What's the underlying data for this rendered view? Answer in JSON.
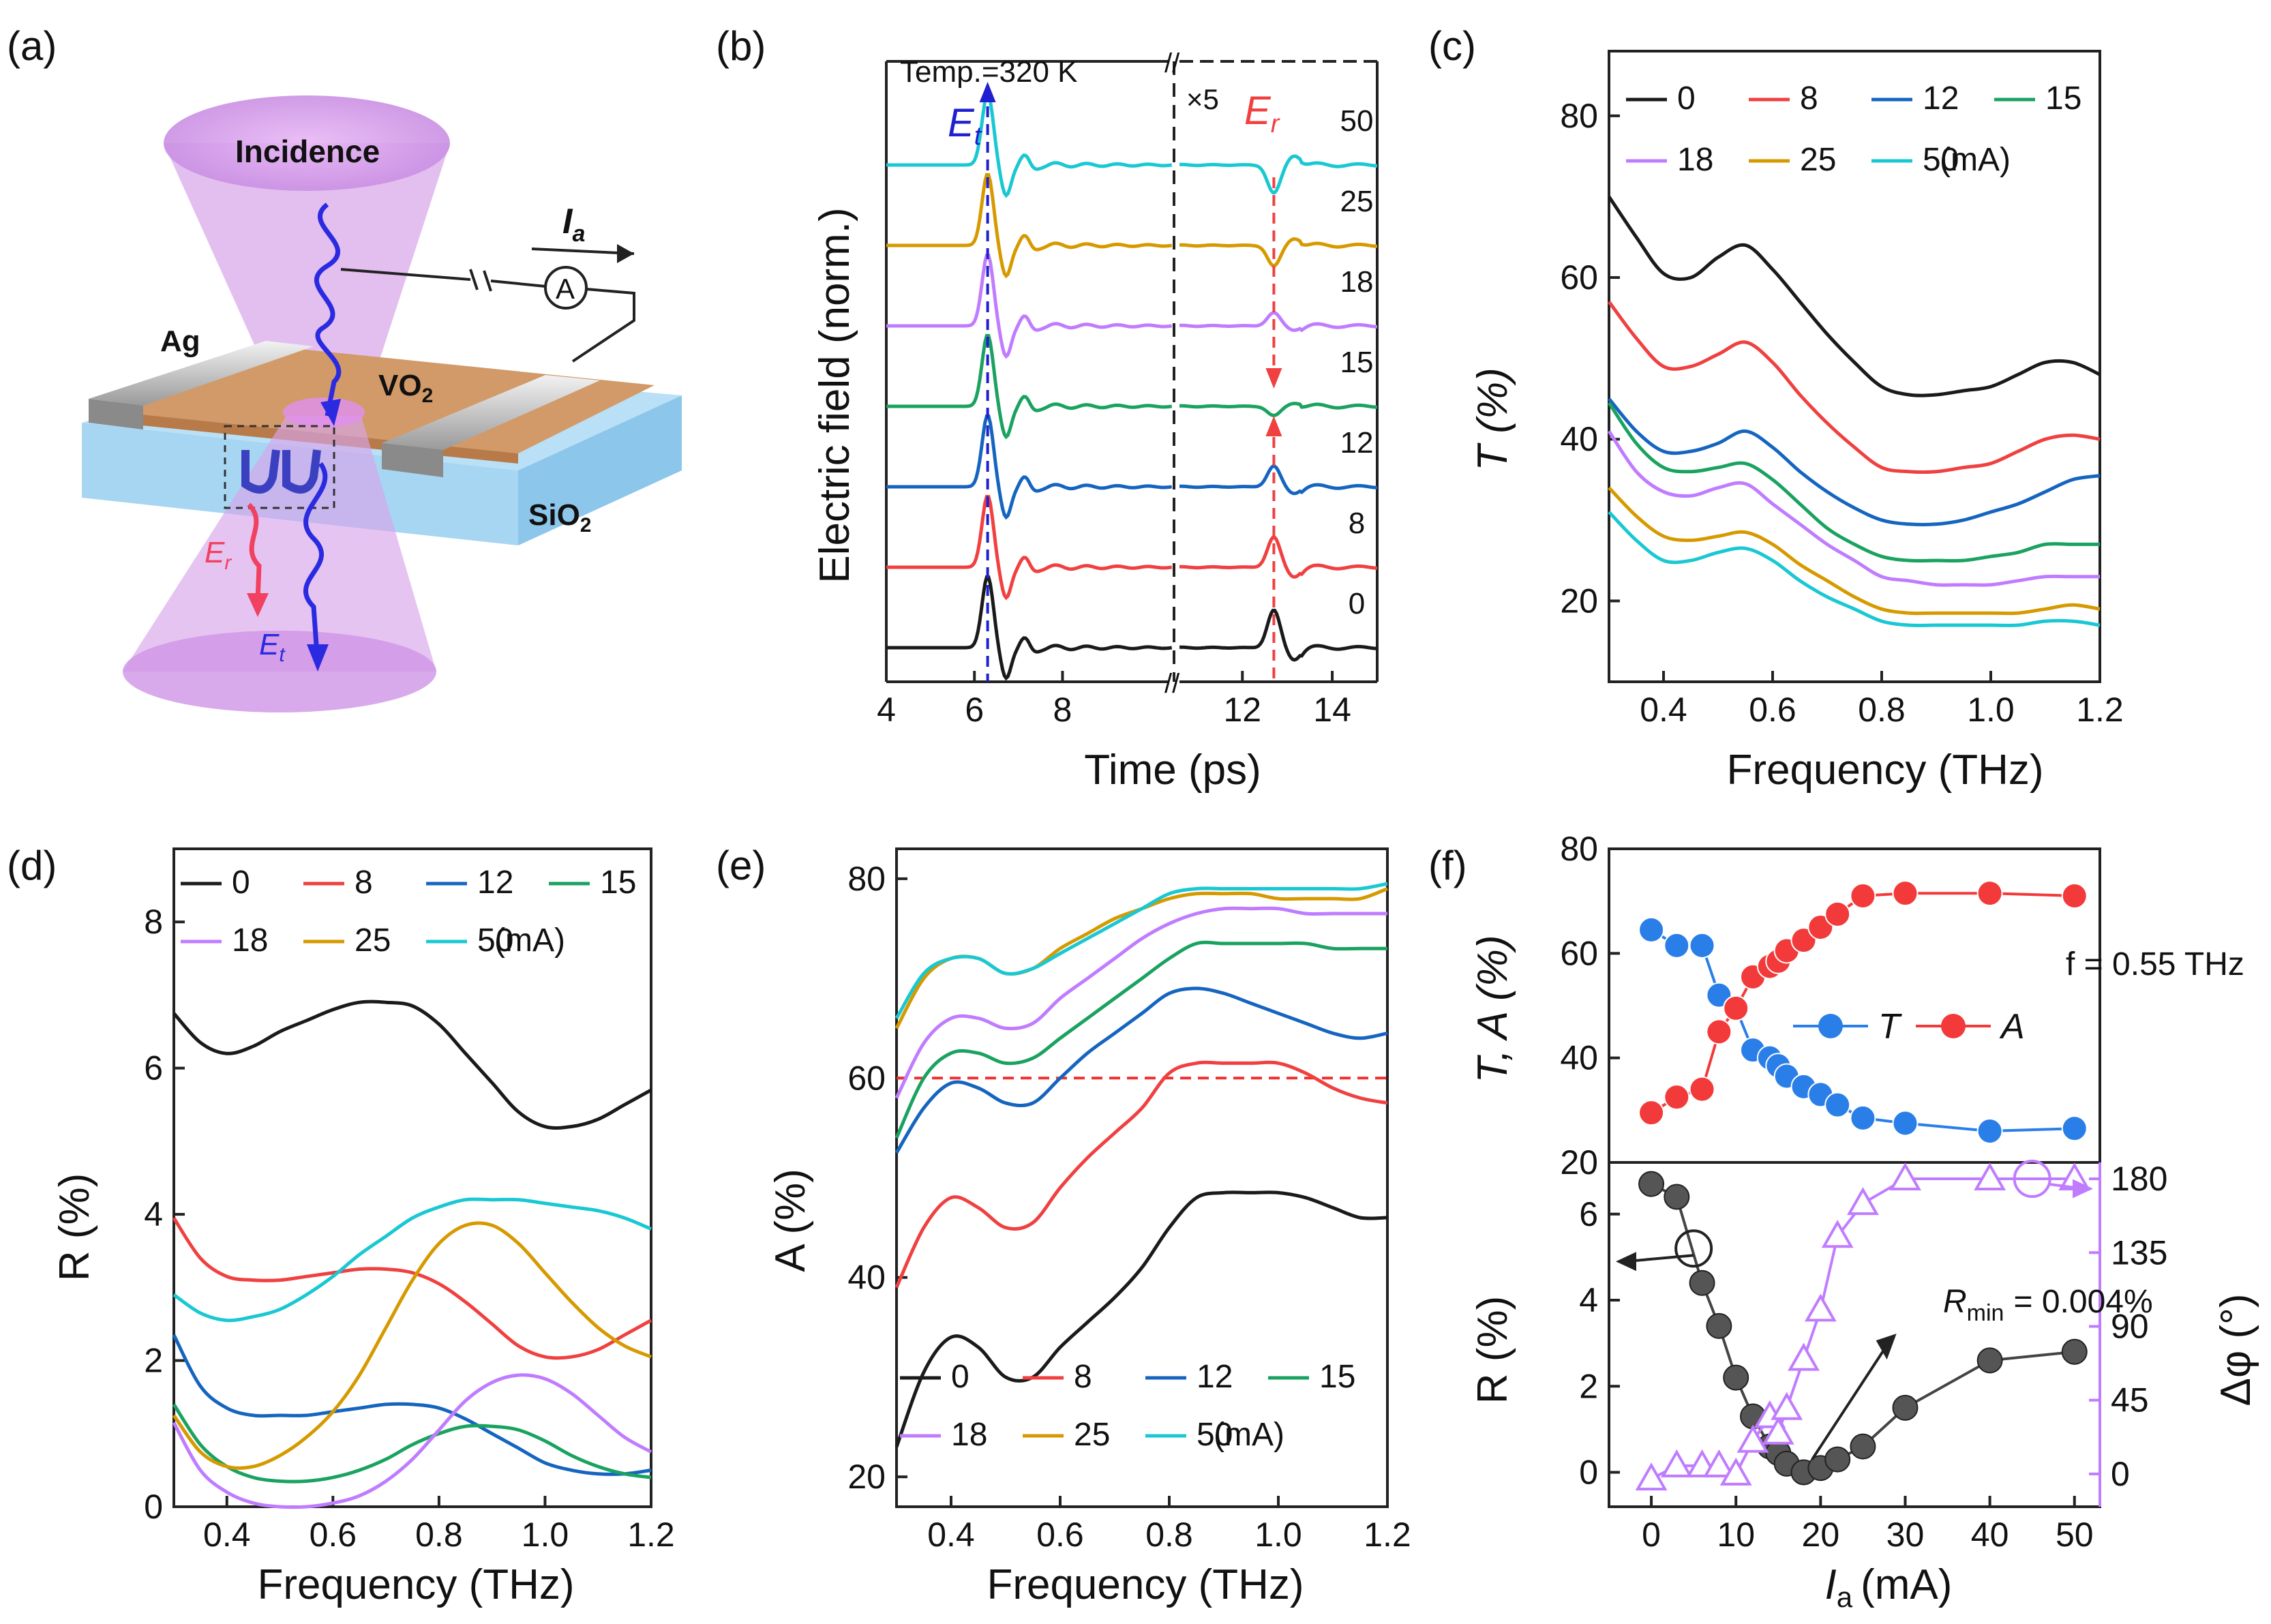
{
  "currents": [
    "0",
    "8",
    "12",
    "15",
    "18",
    "25",
    "50"
  ],
  "current_unit": "(mA)",
  "colors": {
    "0": "#1a1a1a",
    "8": "#f04040",
    "12": "#1565c0",
    "15": "#1aa260",
    "18": "#c07cff",
    "25": "#d69a00",
    "50": "#19c8d2"
  },
  "panel_a": {
    "label": "(a)",
    "incidence": "Incidence",
    "ag": "Ag",
    "vo2": "VO",
    "vo2_sub": "2",
    "sio2": "SiO",
    "sio2_sub": "2",
    "current": "I",
    "current_sub": "a",
    "ammeter": "A",
    "er": "E",
    "er_sub": "r",
    "et": "E",
    "et_sub": "t"
  },
  "chart_data": [
    {
      "id": "b",
      "label": "(b)",
      "type": "line",
      "xlabel": "Time (ps)",
      "ylabel": "Electric field (norm.)",
      "xticks": [
        "4",
        "6",
        "8",
        "12",
        "14"
      ],
      "annotation_temp": "Temp.=320 K",
      "annotation_scale": "×5",
      "marker_et": "E",
      "marker_et_sub": "t",
      "marker_er": "E",
      "marker_er_sub": "r",
      "axis_break": "//",
      "t_pulse_ps": 6.3,
      "t_reflect_ps": 12.7,
      "series_order_bottom_to_top": [
        "0",
        "8",
        "12",
        "15",
        "18",
        "25",
        "50"
      ],
      "trace_labels": [
        "0",
        "8",
        "12",
        "15",
        "18",
        "25",
        "50"
      ]
    },
    {
      "id": "c",
      "label": "(c)",
      "type": "line",
      "xlabel": "Frequency (THz)",
      "ylabel": "T (%)",
      "xlim": [
        0.3,
        1.2
      ],
      "ylim": [
        10,
        88
      ],
      "xticks": [
        "0.4",
        "0.6",
        "0.8",
        "1.0",
        "1.2"
      ],
      "yticks": [
        "20",
        "40",
        "60",
        "80"
      ],
      "x": [
        0.3,
        0.35,
        0.4,
        0.45,
        0.5,
        0.55,
        0.6,
        0.65,
        0.7,
        0.75,
        0.8,
        0.85,
        0.9,
        0.95,
        1.0,
        1.05,
        1.1,
        1.15,
        1.2
      ],
      "series": [
        {
          "name": "0",
          "values": [
            70,
            65,
            60.5,
            60,
            62.5,
            64,
            61,
            57,
            53,
            49.5,
            46.5,
            45.5,
            45.5,
            46,
            46.5,
            48,
            49.5,
            49.5,
            48
          ]
        },
        {
          "name": "8",
          "values": [
            57,
            52.5,
            49,
            49,
            50.5,
            52,
            49.5,
            45.5,
            42,
            39,
            36.5,
            36,
            36,
            36.5,
            37,
            38.5,
            40,
            40.5,
            40
          ]
        },
        {
          "name": "12",
          "values": [
            45,
            41,
            38.5,
            38.5,
            39.5,
            41,
            39,
            36,
            33.5,
            31.5,
            30,
            29.5,
            29.5,
            30,
            31,
            32,
            33.5,
            35,
            35.5
          ]
        },
        {
          "name": "15",
          "values": [
            44.5,
            39.5,
            36.5,
            36,
            36.5,
            37,
            35,
            32,
            29,
            27,
            25.5,
            25,
            25,
            25,
            25.5,
            26,
            27,
            27,
            27
          ]
        },
        {
          "name": "18",
          "values": [
            41,
            36,
            33.5,
            33,
            34,
            34.5,
            32,
            29.5,
            27,
            25,
            23,
            22.5,
            22,
            22,
            22,
            22.5,
            23,
            23,
            23
          ]
        },
        {
          "name": "25",
          "values": [
            34,
            30.5,
            28,
            27.5,
            28,
            28.5,
            27,
            24.5,
            22.5,
            20.5,
            19,
            18.5,
            18.5,
            18.5,
            18.5,
            18.5,
            19,
            19.5,
            19
          ]
        },
        {
          "name": "50",
          "values": [
            31,
            27.5,
            25,
            25,
            26,
            26.5,
            25,
            22.5,
            20.5,
            19,
            17.5,
            17,
            17,
            17,
            17,
            17,
            17.5,
            17.5,
            17
          ]
        }
      ]
    },
    {
      "id": "d",
      "label": "(d)",
      "type": "line",
      "xlabel": "Frequency (THz)",
      "ylabel": "R (%)",
      "xlim": [
        0.3,
        1.2
      ],
      "ylim": [
        0,
        9
      ],
      "xticks": [
        "0.4",
        "0.6",
        "0.8",
        "1.0",
        "1.2"
      ],
      "yticks": [
        "0",
        "2",
        "4",
        "6",
        "8"
      ],
      "x": [
        0.3,
        0.35,
        0.4,
        0.45,
        0.5,
        0.55,
        0.6,
        0.65,
        0.7,
        0.75,
        0.8,
        0.85,
        0.9,
        0.95,
        1.0,
        1.05,
        1.1,
        1.15,
        1.2
      ],
      "series": [
        {
          "name": "0",
          "values": [
            6.75,
            6.35,
            6.2,
            6.3,
            6.5,
            6.65,
            6.8,
            6.9,
            6.9,
            6.85,
            6.6,
            6.2,
            5.8,
            5.4,
            5.2,
            5.2,
            5.3,
            5.5,
            5.7
          ]
        },
        {
          "name": "8",
          "values": [
            3.95,
            3.4,
            3.15,
            3.1,
            3.1,
            3.15,
            3.2,
            3.25,
            3.25,
            3.2,
            3.05,
            2.8,
            2.5,
            2.2,
            2.05,
            2.05,
            2.15,
            2.35,
            2.55
          ]
        },
        {
          "name": "12",
          "values": [
            2.35,
            1.65,
            1.35,
            1.25,
            1.25,
            1.25,
            1.3,
            1.35,
            1.4,
            1.4,
            1.35,
            1.2,
            1.0,
            0.8,
            0.6,
            0.5,
            0.45,
            0.45,
            0.5
          ]
        },
        {
          "name": "15",
          "values": [
            1.4,
            0.85,
            0.55,
            0.4,
            0.35,
            0.35,
            0.4,
            0.5,
            0.65,
            0.85,
            1.0,
            1.1,
            1.1,
            1.05,
            0.9,
            0.7,
            0.55,
            0.45,
            0.4
          ]
        },
        {
          "name": "18",
          "values": [
            1.15,
            0.5,
            0.2,
            0.05,
            0.0,
            0.0,
            0.05,
            0.15,
            0.35,
            0.65,
            1.05,
            1.45,
            1.7,
            1.8,
            1.75,
            1.55,
            1.25,
            0.95,
            0.75
          ]
        },
        {
          "name": "25",
          "values": [
            1.25,
            0.75,
            0.55,
            0.55,
            0.7,
            0.95,
            1.3,
            1.8,
            2.45,
            3.1,
            3.6,
            3.85,
            3.85,
            3.6,
            3.2,
            2.8,
            2.45,
            2.2,
            2.05
          ]
        },
        {
          "name": "50",
          "values": [
            2.9,
            2.65,
            2.55,
            2.6,
            2.7,
            2.9,
            3.15,
            3.45,
            3.7,
            3.95,
            4.1,
            4.2,
            4.2,
            4.2,
            4.15,
            4.1,
            4.05,
            3.95,
            3.8
          ]
        }
      ]
    },
    {
      "id": "e",
      "label": "(e)",
      "type": "line",
      "xlabel": "Frequency (THz)",
      "ylabel": "A (%)",
      "xlim": [
        0.3,
        1.2
      ],
      "ylim": [
        17,
        83
      ],
      "xticks": [
        "0.4",
        "0.6",
        "0.8",
        "1.0",
        "1.2"
      ],
      "yticks": [
        "20",
        "40",
        "60",
        "80"
      ],
      "reference_line": 60,
      "x": [
        0.3,
        0.35,
        0.4,
        0.45,
        0.5,
        0.55,
        0.6,
        0.65,
        0.7,
        0.75,
        0.8,
        0.85,
        0.9,
        0.95,
        1.0,
        1.05,
        1.1,
        1.15,
        1.2
      ],
      "series": [
        {
          "name": "0",
          "values": [
            23,
            30.5,
            34,
            33,
            30,
            30,
            33,
            35.5,
            38,
            41,
            45,
            48,
            48.5,
            48.5,
            48.5,
            48,
            47,
            46,
            46
          ]
        },
        {
          "name": "8",
          "values": [
            39,
            45,
            48,
            47,
            45,
            45.5,
            49,
            52,
            54.5,
            57,
            60.5,
            61.5,
            61.5,
            61.5,
            61.5,
            60.5,
            59,
            58,
            57.5
          ]
        },
        {
          "name": "12",
          "values": [
            52.5,
            57,
            59.5,
            59,
            57.5,
            57.5,
            60,
            62.5,
            64.5,
            66.5,
            68.5,
            69,
            68.5,
            67.5,
            66.5,
            65.5,
            64.5,
            64,
            64.5
          ]
        },
        {
          "name": "15",
          "values": [
            54,
            60,
            62.5,
            62.5,
            61.5,
            62,
            64,
            66,
            68,
            70,
            72,
            73.5,
            73.5,
            73.5,
            73.5,
            73.5,
            73,
            73,
            73
          ]
        },
        {
          "name": "18",
          "values": [
            58,
            63.5,
            66,
            66,
            65,
            65.5,
            68,
            70,
            72,
            74,
            75.5,
            76.5,
            77,
            77,
            77,
            76.5,
            76.5,
            76.5,
            76.5
          ]
        },
        {
          "name": "25",
          "values": [
            65,
            70,
            72,
            72,
            70.5,
            71,
            73,
            74.5,
            76,
            77,
            78,
            78.5,
            78.5,
            78.5,
            78,
            78,
            78,
            78,
            79
          ]
        },
        {
          "name": "50",
          "values": [
            66,
            70.5,
            72,
            72,
            70.5,
            71,
            72.5,
            74,
            75.5,
            77,
            78.5,
            79,
            79,
            79,
            79,
            79,
            79,
            79,
            79.5
          ]
        }
      ]
    },
    {
      "id": "f_top",
      "label": "(f)",
      "type": "scatter",
      "xlim": [
        -5,
        53
      ],
      "ylim": [
        20,
        80
      ],
      "ylabel": "T, A (%)",
      "yticks": [
        "20",
        "40",
        "60",
        "80"
      ],
      "annotation": "f = 0.55 THz",
      "legend": [
        "T",
        "A"
      ],
      "x": [
        0,
        3,
        6,
        8,
        10,
        12,
        14,
        15,
        16,
        18,
        20,
        22,
        25,
        30,
        40,
        50
      ],
      "series": [
        {
          "name": "T",
          "color": "#2a7ee8",
          "values": [
            64.5,
            61.5,
            61.5,
            52,
            49.5,
            41.5,
            40,
            38.5,
            36.5,
            34.5,
            33,
            31,
            28.5,
            27.5,
            26,
            26.5
          ]
        },
        {
          "name": "A",
          "color": "#f23a3a",
          "values": [
            29.5,
            32.5,
            34,
            45,
            49.5,
            55.5,
            57.5,
            58.5,
            60.5,
            62.5,
            65,
            67.5,
            71,
            71.5,
            71.5,
            71
          ]
        }
      ]
    },
    {
      "id": "f_bottom",
      "type": "scatter",
      "xlabel": "I",
      "xlabel_sub": "a",
      "xlabel_unit": "(mA)",
      "xlim": [
        -5,
        53
      ],
      "ylim": [
        -0.8,
        7.2
      ],
      "ylabel": "R (%)",
      "ylabel_right": "Δφ (°)",
      "xticks": [
        "0",
        "10",
        "20",
        "30",
        "40",
        "50"
      ],
      "yticks": [
        "0",
        "2",
        "4",
        "6"
      ],
      "yticks_right": [
        "0",
        "45",
        "90",
        "135",
        "180"
      ],
      "y2lim": [
        -20,
        190
      ],
      "annotation": "R",
      "annotation_sub": "min",
      "annotation_val": "= 0.004%",
      "x": [
        0,
        3,
        6,
        8,
        10,
        12,
        14,
        15,
        16,
        18,
        20,
        22,
        25,
        30,
        40,
        50
      ],
      "series": [
        {
          "name": "R",
          "color": "#555555",
          "values": [
            6.7,
            6.4,
            4.4,
            3.4,
            2.2,
            1.3,
            0.6,
            0.45,
            0.2,
            0.0,
            0.1,
            0.3,
            0.6,
            1.5,
            2.6,
            2.8
          ]
        },
        {
          "name": "Δφ",
          "color": "#c07cff",
          "values": [
            -3,
            5,
            5,
            5,
            0,
            20,
            35,
            25,
            40,
            70,
            100,
            145,
            165,
            180,
            180,
            180
          ]
        }
      ]
    }
  ]
}
